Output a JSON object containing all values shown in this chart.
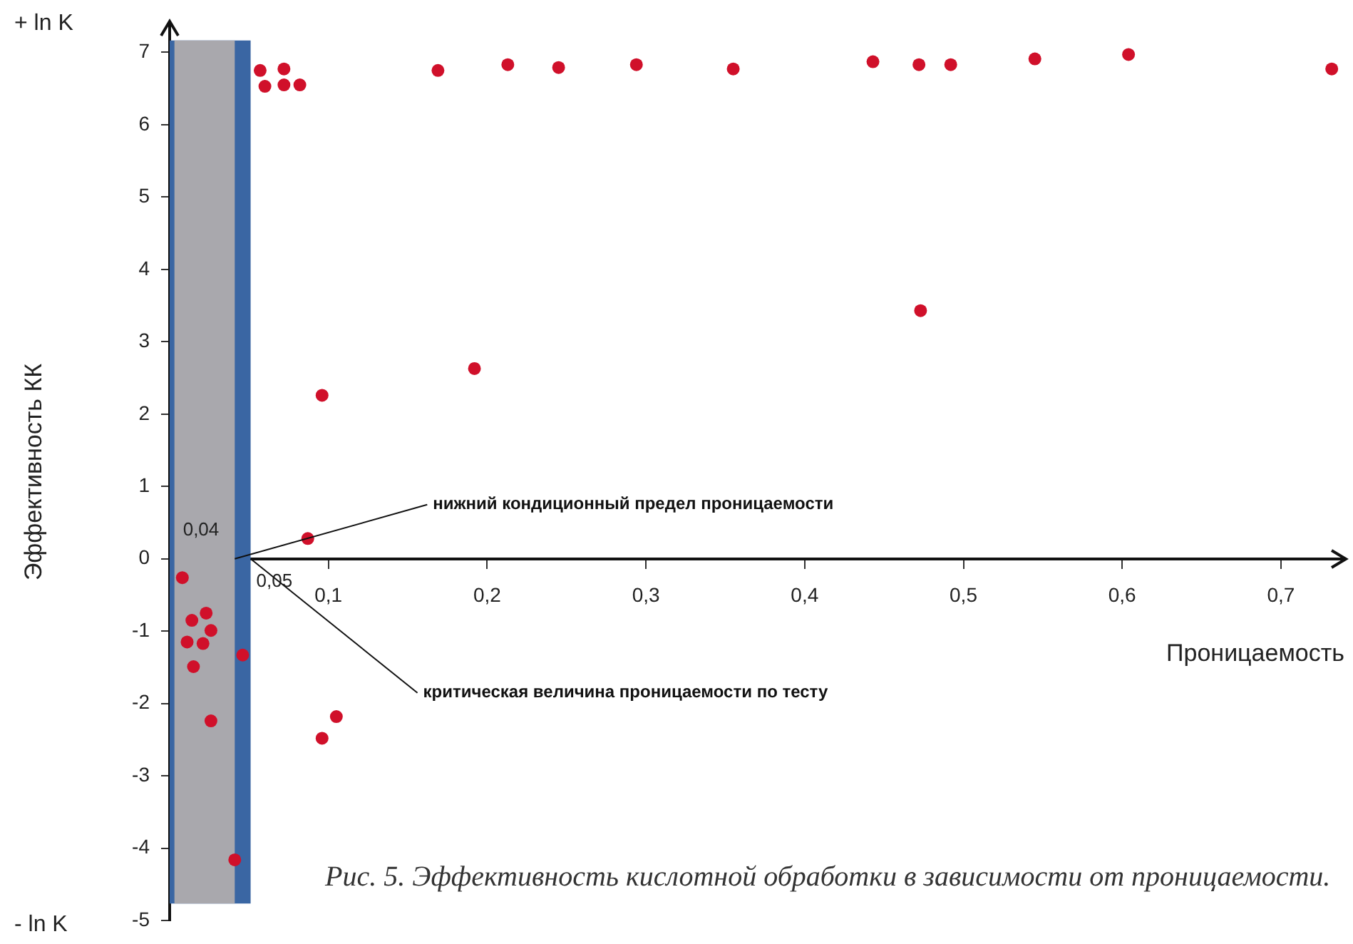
{
  "chart_data": {
    "type": "scatter",
    "xlabel": "Проницаемость",
    "ylabel": "Эффективность КК",
    "xlim": [
      0,
      0.74
    ],
    "ylim": [
      -5,
      7.4
    ],
    "xticks": [
      {
        "value": 0.1,
        "label": "0,1"
      },
      {
        "value": 0.2,
        "label": "0,2"
      },
      {
        "value": 0.3,
        "label": "0,3"
      },
      {
        "value": 0.4,
        "label": "0,4"
      },
      {
        "value": 0.5,
        "label": "0,5"
      },
      {
        "value": 0.6,
        "label": "0,6"
      },
      {
        "value": 0.7,
        "label": "0,7"
      }
    ],
    "yticks": [
      -5,
      -4,
      -3,
      -2,
      -1,
      0,
      1,
      2,
      3,
      4,
      5,
      6,
      7
    ],
    "series": [
      {
        "color": "#d0102a",
        "x": [
          0.057,
          0.06,
          0.072,
          0.072,
          0.082,
          0.169,
          0.213,
          0.245,
          0.294,
          0.355,
          0.443,
          0.472,
          0.492,
          0.545,
          0.604,
          0.732,
          0.473,
          0.096,
          0.192,
          0.087,
          0.008,
          0.014,
          0.023,
          0.026,
          0.011,
          0.021,
          0.015,
          0.026,
          0.046,
          0.096,
          0.105,
          0.041
        ],
        "values": [
          6.75,
          6.53,
          6.77,
          6.55,
          6.55,
          6.75,
          6.83,
          6.79,
          6.83,
          6.77,
          6.87,
          6.83,
          6.83,
          6.91,
          6.97,
          6.77,
          3.43,
          2.26,
          2.63,
          0.28,
          -0.26,
          -0.85,
          -0.75,
          -0.99,
          -1.15,
          -1.17,
          -1.49,
          -2.24,
          -1.33,
          -2.48,
          -2.18,
          -4.16
        ]
      }
    ],
    "bands": [
      {
        "axis": "x",
        "from": 0,
        "to": 0.051,
        "label": "0,05",
        "color": "#3a66a3"
      },
      {
        "axis": "x",
        "from": 0.003,
        "to": 0.041,
        "label": "0,04",
        "color": "#a9a8ad"
      }
    ],
    "annotations": [
      {
        "text": "нижний кондиционный предел проницаемости",
        "x": 0.041,
        "y": 0
      },
      {
        "text": "критическая величина проницаемости по тесту",
        "x": 0.051,
        "y": 0
      },
      "+ ln K",
      "- ln K",
      "Рис. 5. Эффективность кислотной обработки в зависимости от проницаемости."
    ],
    "grid": false,
    "legend": false,
    "marker": "circle"
  }
}
